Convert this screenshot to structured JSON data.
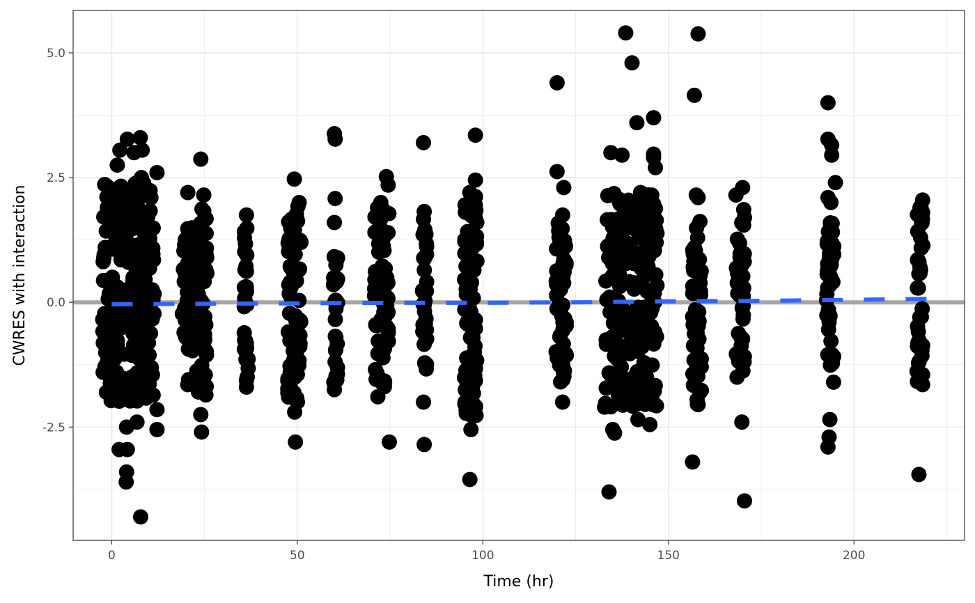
{
  "chart_data": {
    "type": "scatter",
    "title": "",
    "xlabel": "Time (hr)",
    "ylabel": "CWRES with interaction",
    "xlim": [
      -10.4,
      229.8
    ],
    "ylim": [
      -4.77,
      5.85
    ],
    "x_ticks": [
      0,
      50,
      100,
      150,
      200
    ],
    "x_tick_labels": [
      "0",
      "50",
      "100",
      "150",
      "200"
    ],
    "y_ticks": [
      -2.5,
      0,
      2.5,
      5
    ],
    "y_tick_labels": [
      "-2.5",
      "0.0",
      "2.5",
      "5.0"
    ],
    "grid": true,
    "legend": "none",
    "colors": {
      "points": "#000000",
      "reference_line": "#a6a6a6",
      "trend_line": "#3366ff",
      "panel_border": "#333333",
      "grid": "#ebebeb"
    },
    "reference_line": {
      "y": 0
    },
    "trend": {
      "x": [
        0,
        25,
        50,
        75,
        100,
        125,
        150,
        175,
        200,
        220
      ],
      "y": [
        -0.04,
        -0.03,
        -0.02,
        -0.01,
        -0.01,
        0.0,
        0.02,
        0.03,
        0.05,
        0.07
      ]
    },
    "time_clusters": [
      {
        "x": 4.5,
        "spread": 7,
        "y": [
          -2.0,
          2.4
        ],
        "n": 260
      },
      {
        "x": 20.5,
        "spread": 1.5,
        "y": [
          -1.0,
          1.5
        ],
        "n": 40
      },
      {
        "x": 24.2,
        "spread": 1.5,
        "y": [
          -1.9,
          2.0
        ],
        "n": 50
      },
      {
        "x": 36.3,
        "spread": 0.6,
        "y": [
          -1.7,
          1.7
        ],
        "n": 30
      },
      {
        "x": 49.2,
        "spread": 1.8,
        "y": [
          -2.0,
          2.1
        ],
        "n": 70
      },
      {
        "x": 60.3,
        "spread": 0.6,
        "y": [
          -1.7,
          1.0
        ],
        "n": 25
      },
      {
        "x": 72.8,
        "spread": 2.0,
        "y": [
          -1.9,
          2.0
        ],
        "n": 70
      },
      {
        "x": 84.3,
        "spread": 0.6,
        "y": [
          -1.5,
          1.8
        ],
        "n": 30
      },
      {
        "x": 96.8,
        "spread": 1.8,
        "y": [
          -2.3,
          2.2
        ],
        "n": 75
      },
      {
        "x": 121.0,
        "spread": 1.5,
        "y": [
          -1.6,
          1.6
        ],
        "n": 50
      },
      {
        "x": 140.0,
        "spread": 7,
        "y": [
          -2.1,
          2.2
        ],
        "n": 230
      },
      {
        "x": 157.7,
        "spread": 1.2,
        "y": [
          -2.1,
          1.5
        ],
        "n": 45
      },
      {
        "x": 169.5,
        "spread": 1.2,
        "y": [
          -1.5,
          2.0
        ],
        "n": 40
      },
      {
        "x": 193.6,
        "spread": 1.0,
        "y": [
          -1.3,
          1.6
        ],
        "n": 40
      },
      {
        "x": 217.8,
        "spread": 0.8,
        "y": [
          -1.6,
          1.9
        ],
        "n": 40
      }
    ],
    "points": [
      [
        2.0,
        -2.95
      ],
      [
        4.2,
        -2.95
      ],
      [
        4.0,
        -3.4
      ],
      [
        3.9,
        -3.6
      ],
      [
        7.8,
        -4.3
      ],
      [
        4.0,
        -2.5
      ],
      [
        6.8,
        -2.4
      ],
      [
        12.2,
        -2.15
      ],
      [
        12.2,
        -2.55
      ],
      [
        12.2,
        2.6
      ],
      [
        7.7,
        3.3
      ],
      [
        4.2,
        3.27
      ],
      [
        8.2,
        3.05
      ],
      [
        6.0,
        3.0
      ],
      [
        2.2,
        3.05
      ],
      [
        1.5,
        2.75
      ],
      [
        8.0,
        2.5
      ],
      [
        24.0,
        2.87
      ],
      [
        24.0,
        -2.25
      ],
      [
        24.2,
        -2.6
      ],
      [
        20.5,
        2.2
      ],
      [
        20.7,
        -1.55
      ],
      [
        20.5,
        -1.65
      ],
      [
        24.8,
        2.15
      ],
      [
        36.3,
        1.75
      ],
      [
        36.3,
        -1.7
      ],
      [
        49.2,
        2.47
      ],
      [
        49.5,
        -2.8
      ],
      [
        49.3,
        -2.2
      ],
      [
        50.5,
        2.0
      ],
      [
        60.0,
        3.38
      ],
      [
        60.2,
        3.27
      ],
      [
        60.2,
        2.08
      ],
      [
        60.0,
        1.6
      ],
      [
        60.0,
        -1.75
      ],
      [
        60.0,
        -1.62
      ],
      [
        74.0,
        2.52
      ],
      [
        74.5,
        2.35
      ],
      [
        74.8,
        -2.8
      ],
      [
        72.5,
        2.0
      ],
      [
        84.0,
        3.2
      ],
      [
        84.2,
        -2.85
      ],
      [
        84.0,
        -2.0
      ],
      [
        84.2,
        1.82
      ],
      [
        96.5,
        -3.55
      ],
      [
        96.8,
        -2.55
      ],
      [
        98.0,
        3.35
      ],
      [
        98.0,
        2.45
      ],
      [
        96.5,
        2.2
      ],
      [
        98.0,
        1.68
      ],
      [
        98.0,
        -2.1
      ],
      [
        120.0,
        4.4
      ],
      [
        120.0,
        2.62
      ],
      [
        121.8,
        2.3
      ],
      [
        121.5,
        1.75
      ],
      [
        121.5,
        -2.0
      ],
      [
        132.8,
        -2.1
      ],
      [
        134.0,
        -3.8
      ],
      [
        134.5,
        3.0
      ],
      [
        135.0,
        -2.55
      ],
      [
        135.5,
        -2.62
      ],
      [
        137.5,
        2.95
      ],
      [
        138.5,
        5.4
      ],
      [
        139.0,
        2.0
      ],
      [
        140.2,
        4.8
      ],
      [
        141.5,
        3.6
      ],
      [
        141.8,
        -2.35
      ],
      [
        142.5,
        2.2
      ],
      [
        144.5,
        2.05
      ],
      [
        145.0,
        -2.45
      ],
      [
        145.5,
        2.15
      ],
      [
        146.0,
        3.7
      ],
      [
        146.0,
        2.97
      ],
      [
        146.0,
        2.9
      ],
      [
        146.5,
        2.7
      ],
      [
        146.0,
        1.6
      ],
      [
        145.8,
        -2.05
      ],
      [
        145.8,
        -1.75
      ],
      [
        156.5,
        -3.2
      ],
      [
        157.0,
        4.15
      ],
      [
        157.5,
        2.15
      ],
      [
        158.0,
        5.38
      ],
      [
        158.0,
        2.1
      ],
      [
        158.5,
        1.62
      ],
      [
        158.0,
        -2.05
      ],
      [
        158.5,
        -1.8
      ],
      [
        168.2,
        2.15
      ],
      [
        170.0,
        2.3
      ],
      [
        170.5,
        1.7
      ],
      [
        169.8,
        -2.4
      ],
      [
        170.5,
        -3.98
      ],
      [
        168.5,
        -1.5
      ],
      [
        193.0,
        4.0
      ],
      [
        193.0,
        3.27
      ],
      [
        194.0,
        3.15
      ],
      [
        194.0,
        2.95
      ],
      [
        195.0,
        2.4
      ],
      [
        193.0,
        2.1
      ],
      [
        193.8,
        2.0
      ],
      [
        193.5,
        -2.35
      ],
      [
        193.3,
        -2.7
      ],
      [
        193.0,
        -2.9
      ],
      [
        194.5,
        -1.6
      ],
      [
        217.5,
        -3.45
      ],
      [
        217.8,
        1.9
      ],
      [
        218.5,
        2.05
      ],
      [
        218.5,
        1.8
      ],
      [
        218.5,
        -1.45
      ],
      [
        218.5,
        -1.65
      ]
    ]
  }
}
